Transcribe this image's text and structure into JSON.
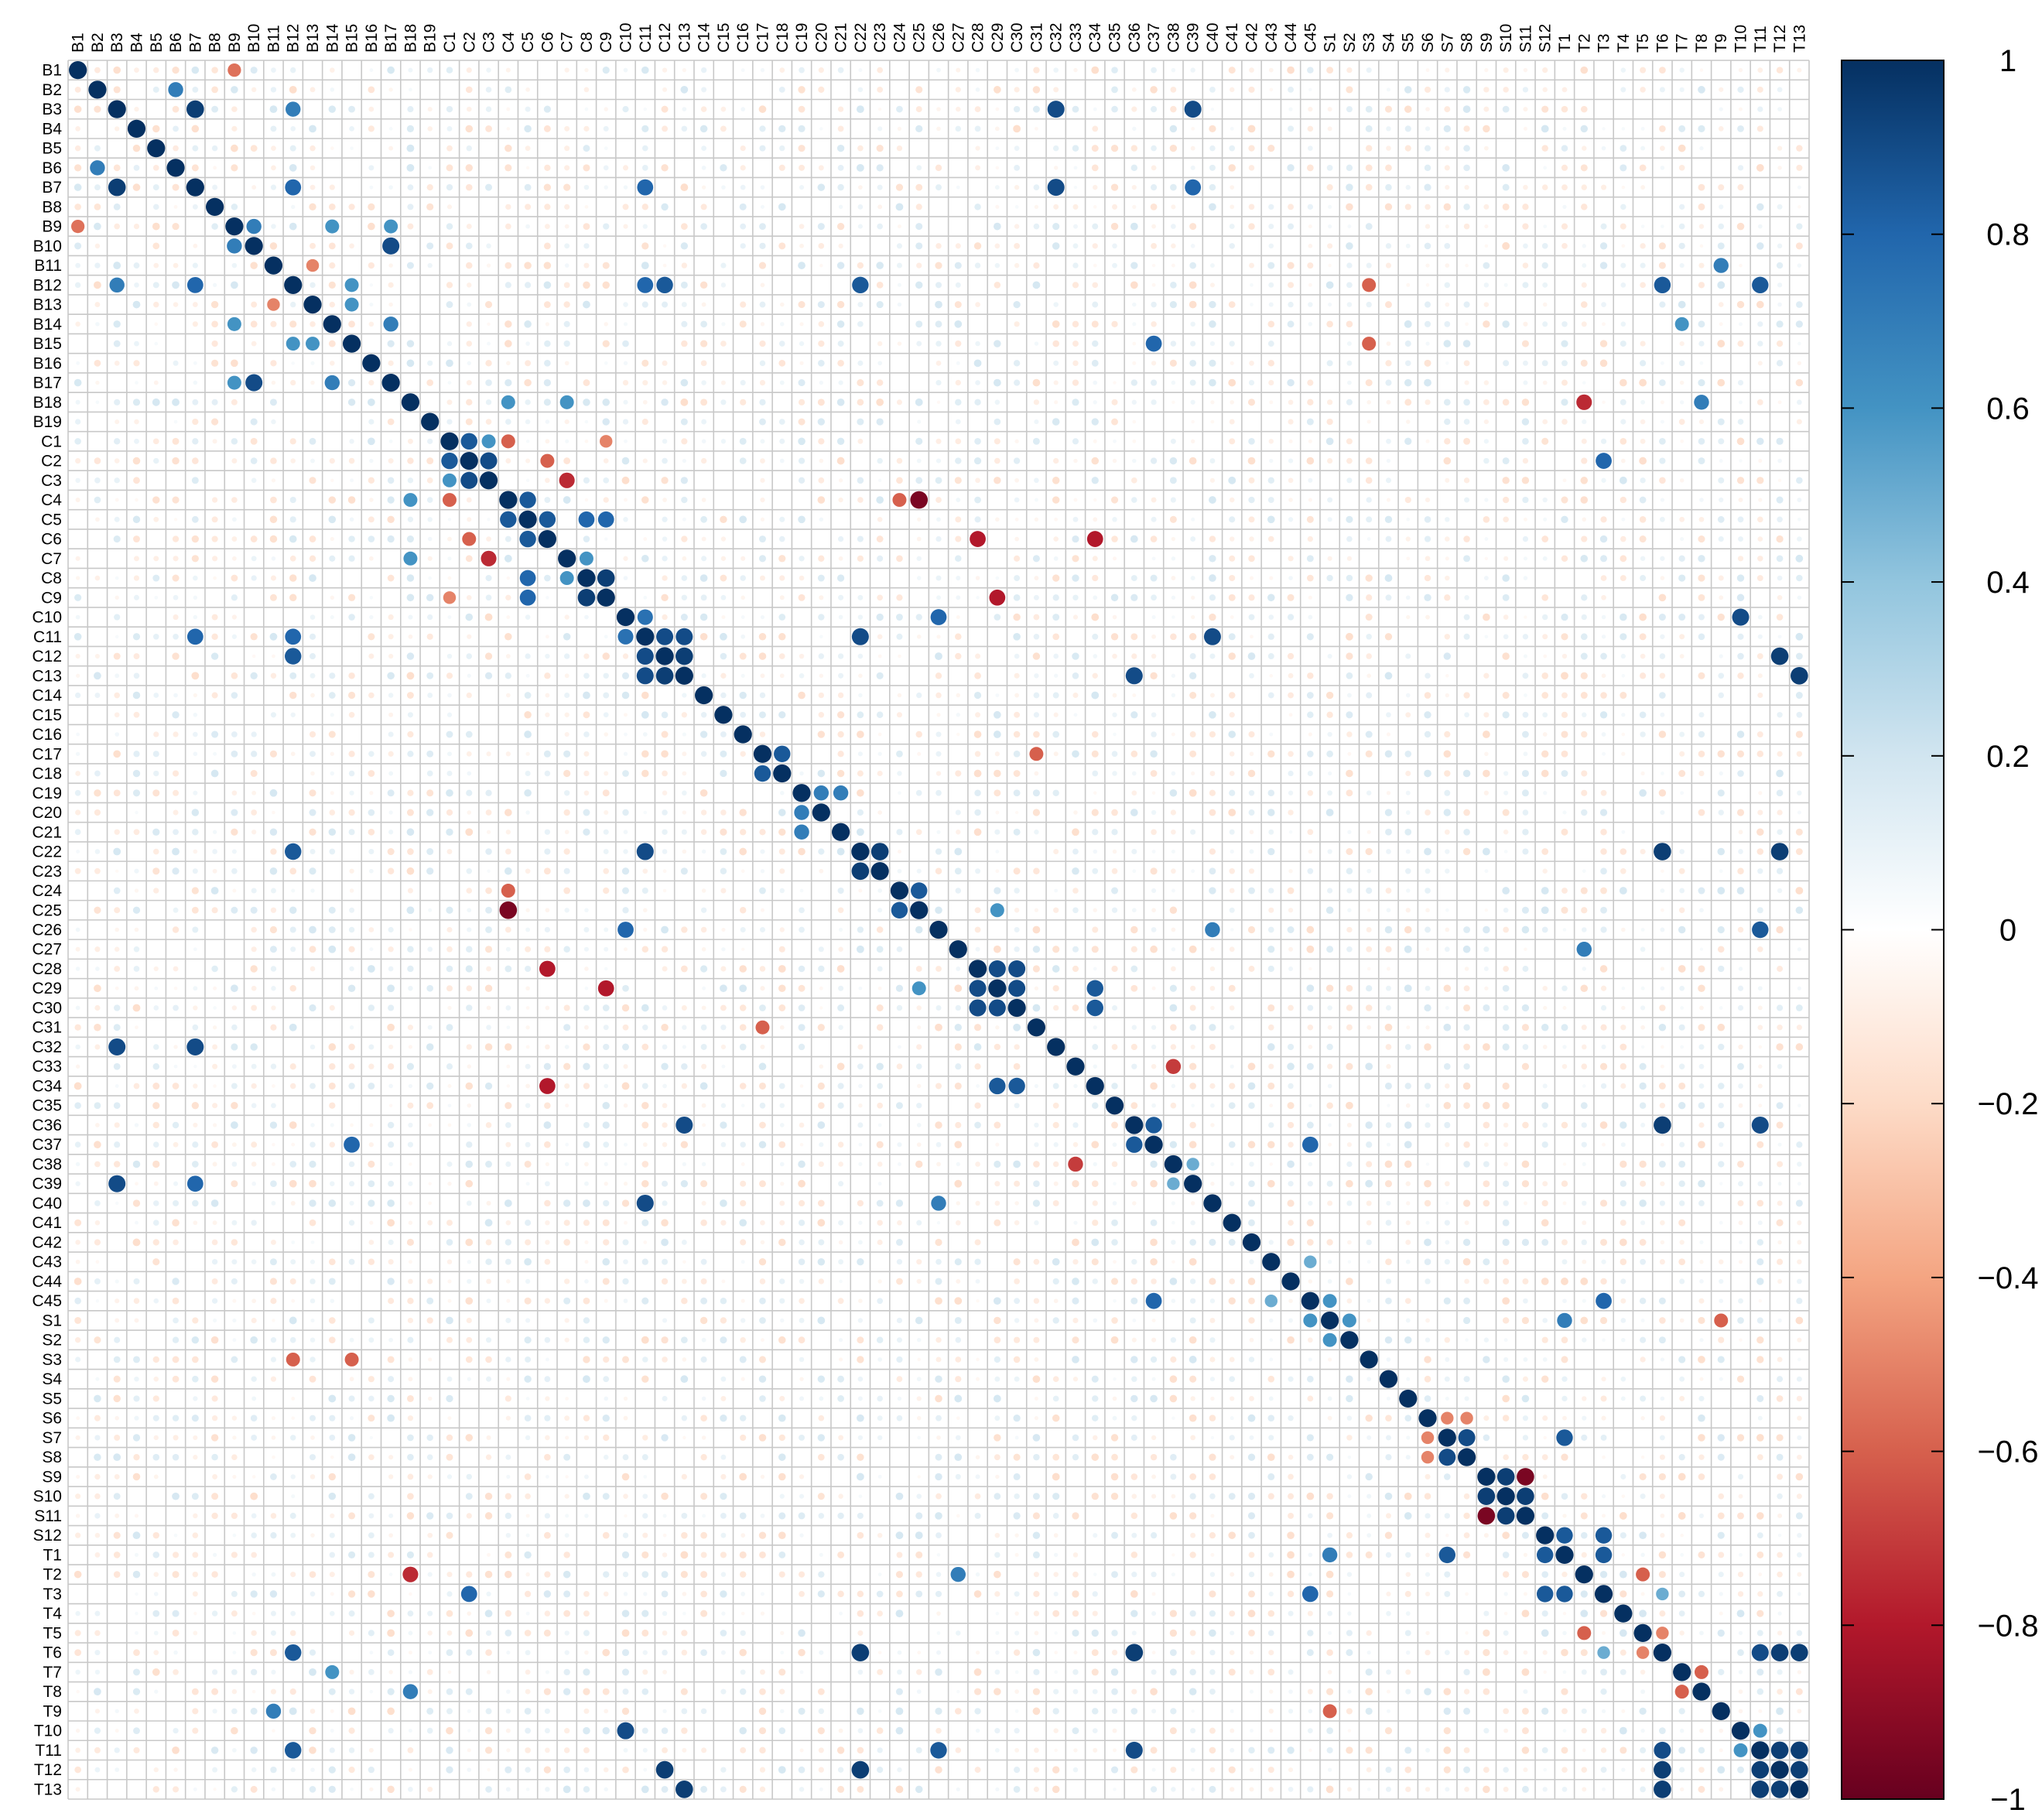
{
  "chart_data": {
    "type": "heatmap",
    "title": "",
    "xlabel": "",
    "ylabel": "",
    "variables": [
      "B1",
      "B2",
      "B3",
      "B4",
      "B5",
      "B6",
      "B7",
      "B8",
      "B9",
      "B10",
      "B11",
      "B12",
      "B13",
      "B14",
      "B15",
      "B16",
      "B17",
      "B18",
      "B19",
      "C1",
      "C2",
      "C3",
      "C4",
      "C5",
      "C6",
      "C7",
      "C8",
      "C9",
      "C10",
      "C11",
      "C12",
      "C13",
      "C14",
      "C15",
      "C16",
      "C17",
      "C18",
      "C19",
      "C20",
      "C21",
      "C22",
      "C23",
      "C24",
      "C25",
      "C26",
      "C27",
      "C28",
      "C29",
      "C30",
      "C31",
      "C32",
      "C33",
      "C34",
      "C35",
      "C36",
      "C37",
      "C38",
      "C39",
      "C40",
      "C41",
      "C42",
      "C43",
      "C44",
      "C45",
      "S1",
      "S2",
      "S3",
      "S4",
      "S5",
      "S6",
      "S7",
      "S8",
      "S9",
      "S10",
      "S11",
      "S12",
      "T1",
      "T2",
      "T3",
      "T4",
      "T5",
      "T6",
      "T7",
      "T8",
      "T9",
      "T10",
      "T11",
      "T12",
      "T13"
    ],
    "matrix_style": "correlation plot, circles sized and coloured by correlation coefficient; diagonal equals 1",
    "value_range": [
      -1,
      1
    ],
    "colorbar": {
      "ticks": [
        1,
        0.8,
        0.6,
        0.4,
        0.2,
        0,
        -0.2,
        -0.4,
        -0.6,
        -0.8,
        -1
      ],
      "tick_labels": [
        "1",
        "0.8",
        "0.6",
        "0.4",
        "0.2",
        "0",
        "−0.2",
        "−0.4",
        "−0.6",
        "−0.8",
        "−1"
      ],
      "stops": [
        "#67001f",
        "#b2182b",
        "#d6604d",
        "#f4a582",
        "#fddbc7",
        "#ffffff",
        "#d1e5f0",
        "#92c5de",
        "#4393c3",
        "#2166ac",
        "#053061"
      ]
    },
    "notable_correlations": [
      [
        "B1",
        "B9",
        -0.55
      ],
      [
        "B2",
        "B6",
        0.7
      ],
      [
        "B3",
        "B7",
        0.95
      ],
      [
        "B3",
        "B12",
        0.7
      ],
      [
        "B3",
        "C32",
        0.9
      ],
      [
        "B3",
        "C39",
        0.9
      ],
      [
        "B7",
        "B12",
        0.8
      ],
      [
        "B7",
        "C32",
        0.9
      ],
      [
        "B7",
        "C39",
        0.8
      ],
      [
        "B7",
        "C11",
        0.8
      ],
      [
        "B9",
        "B10",
        0.7
      ],
      [
        "B9",
        "B14",
        0.6
      ],
      [
        "B9",
        "B17",
        0.6
      ],
      [
        "B10",
        "B17",
        0.9
      ],
      [
        "B11",
        "B13",
        -0.5
      ],
      [
        "B11",
        "T9",
        0.7
      ],
      [
        "B12",
        "B15",
        0.6
      ],
      [
        "B12",
        "C11",
        0.8
      ],
      [
        "B12",
        "C12",
        0.85
      ],
      [
        "B12",
        "C22",
        0.85
      ],
      [
        "B12",
        "S3",
        -0.6
      ],
      [
        "B12",
        "T6",
        0.85
      ],
      [
        "B12",
        "T11",
        0.85
      ],
      [
        "B13",
        "B15",
        0.6
      ],
      [
        "B14",
        "B17",
        0.7
      ],
      [
        "B14",
        "T7",
        0.6
      ],
      [
        "B15",
        "C37",
        0.8
      ],
      [
        "B15",
        "S3",
        -0.6
      ],
      [
        "B18",
        "C4",
        0.6
      ],
      [
        "B18",
        "C7",
        0.6
      ],
      [
        "B18",
        "T2",
        -0.75
      ],
      [
        "B18",
        "T8",
        0.7
      ],
      [
        "C1",
        "C2",
        0.85
      ],
      [
        "C1",
        "C3",
        0.6
      ],
      [
        "C1",
        "C4",
        -0.6
      ],
      [
        "C1",
        "C9",
        -0.5
      ],
      [
        "C2",
        "C3",
        0.9
      ],
      [
        "C2",
        "C6",
        -0.6
      ],
      [
        "C2",
        "T3",
        0.8
      ],
      [
        "C3",
        "C7",
        -0.75
      ],
      [
        "C4",
        "C5",
        0.85
      ],
      [
        "C4",
        "C25",
        -0.95
      ],
      [
        "C4",
        "C24",
        -0.6
      ],
      [
        "C5",
        "C6",
        0.85
      ],
      [
        "C5",
        "C8",
        0.8
      ],
      [
        "C5",
        "C9",
        0.8
      ],
      [
        "C6",
        "C28",
        -0.8
      ],
      [
        "C6",
        "C34",
        -0.8
      ],
      [
        "C7",
        "C8",
        0.6
      ],
      [
        "C8",
        "C9",
        0.95
      ],
      [
        "C9",
        "C29",
        -0.8
      ],
      [
        "C10",
        "C11",
        0.75
      ],
      [
        "C10",
        "C26",
        0.8
      ],
      [
        "C10",
        "T10",
        0.9
      ],
      [
        "C11",
        "C12",
        0.9
      ],
      [
        "C11",
        "C13",
        0.9
      ],
      [
        "C11",
        "C22",
        0.9
      ],
      [
        "C11",
        "C40",
        0.9
      ],
      [
        "C12",
        "C13",
        0.95
      ],
      [
        "C12",
        "T12",
        0.95
      ],
      [
        "C13",
        "T13",
        0.95
      ],
      [
        "C13",
        "C36",
        0.9
      ],
      [
        "C17",
        "C18",
        0.85
      ],
      [
        "C17",
        "C31",
        -0.6
      ],
      [
        "C19",
        "C20",
        0.7
      ],
      [
        "C19",
        "C21",
        0.7
      ],
      [
        "C22",
        "C23",
        0.95
      ],
      [
        "C22",
        "T6",
        0.95
      ],
      [
        "C22",
        "T12",
        0.95
      ],
      [
        "C24",
        "C25",
        0.85
      ],
      [
        "C25",
        "C29",
        0.6
      ],
      [
        "C26",
        "C40",
        0.7
      ],
      [
        "C26",
        "T11",
        0.85
      ],
      [
        "C27",
        "T2",
        0.7
      ],
      [
        "C28",
        "C29",
        0.9
      ],
      [
        "C28",
        "C30",
        0.9
      ],
      [
        "C29",
        "C30",
        0.9
      ],
      [
        "C29",
        "C34",
        0.85
      ],
      [
        "C30",
        "C34",
        0.85
      ],
      [
        "C33",
        "C38",
        -0.7
      ],
      [
        "C36",
        "C37",
        0.85
      ],
      [
        "C36",
        "T6",
        0.95
      ],
      [
        "C36",
        "T11",
        0.9
      ],
      [
        "C37",
        "C45",
        0.8
      ],
      [
        "C38",
        "C39",
        0.5
      ],
      [
        "C43",
        "C45",
        0.5
      ],
      [
        "C45",
        "S1",
        0.6
      ],
      [
        "C45",
        "T3",
        0.8
      ],
      [
        "S1",
        "S2",
        0.6
      ],
      [
        "S1",
        "T9",
        -0.6
      ],
      [
        "S1",
        "T1",
        0.7
      ],
      [
        "S6",
        "S7",
        -0.5
      ],
      [
        "S6",
        "S8",
        -0.5
      ],
      [
        "S7",
        "S8",
        0.9
      ],
      [
        "S7",
        "T1",
        0.85
      ],
      [
        "S9",
        "S10",
        0.95
      ],
      [
        "S9",
        "S11",
        -0.95
      ],
      [
        "S10",
        "S11",
        0.95
      ],
      [
        "S12",
        "T1",
        0.85
      ],
      [
        "S12",
        "T3",
        0.85
      ],
      [
        "T1",
        "T3",
        0.85
      ],
      [
        "T2",
        "T5",
        -0.6
      ],
      [
        "T3",
        "T6",
        0.5
      ],
      [
        "T5",
        "T6",
        -0.5
      ],
      [
        "T6",
        "T11",
        0.9
      ],
      [
        "T6",
        "T12",
        0.95
      ],
      [
        "T6",
        "T13",
        0.95
      ],
      [
        "T7",
        "T8",
        -0.6
      ],
      [
        "T10",
        "T11",
        0.6
      ],
      [
        "T11",
        "T12",
        0.95
      ],
      [
        "T11",
        "T13",
        0.95
      ],
      [
        "T12",
        "T13",
        0.95
      ]
    ]
  }
}
